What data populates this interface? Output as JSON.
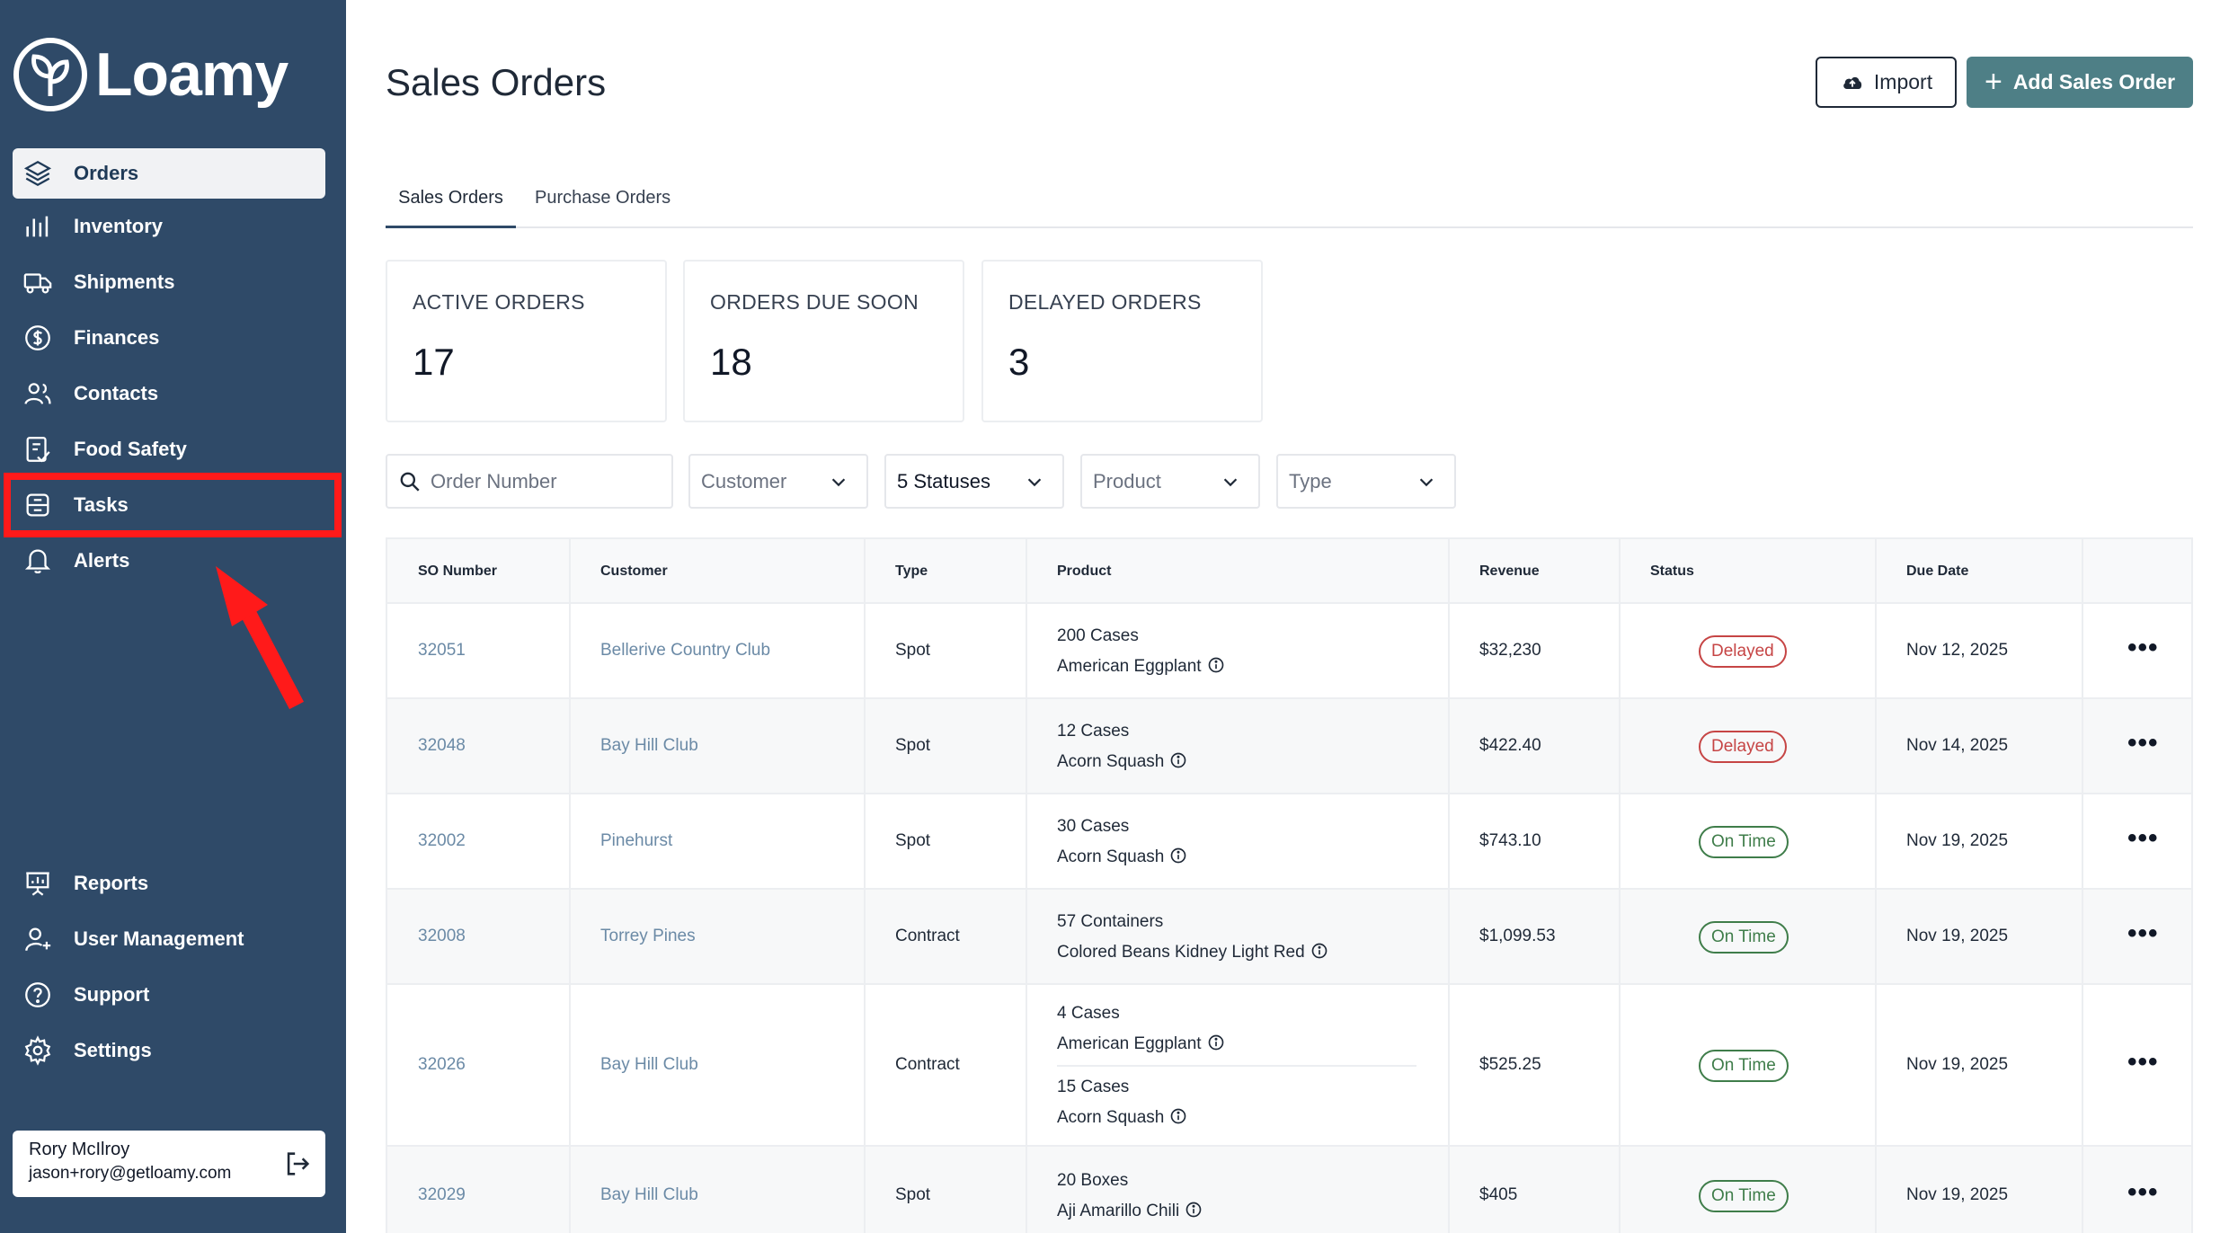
{
  "app": {
    "brand": "Loamy"
  },
  "sidebar": {
    "items": [
      {
        "label": "Orders",
        "icon": "layers-icon",
        "active": true
      },
      {
        "label": "Inventory",
        "icon": "bar-chart-icon"
      },
      {
        "label": "Shipments",
        "icon": "truck-icon"
      },
      {
        "label": "Finances",
        "icon": "dollar-icon"
      },
      {
        "label": "Contacts",
        "icon": "users-icon"
      },
      {
        "label": "Food Safety",
        "icon": "clipboard-check-icon"
      },
      {
        "label": "Tasks",
        "icon": "tasks-icon",
        "highlighted": true
      },
      {
        "label": "Alerts",
        "icon": "bell-icon"
      }
    ],
    "bottom_items": [
      {
        "label": "Reports",
        "icon": "presentation-icon"
      },
      {
        "label": "User Management",
        "icon": "user-add-icon"
      },
      {
        "label": "Support",
        "icon": "help-icon"
      },
      {
        "label": "Settings",
        "icon": "gear-icon"
      }
    ],
    "user": {
      "name": "Rory McIlroy",
      "email": "jason+rory@getloamy.com"
    }
  },
  "header": {
    "title": "Sales Orders",
    "import_label": "Import",
    "add_label": "Add Sales Order"
  },
  "tabs": [
    {
      "label": "Sales Orders",
      "active": true
    },
    {
      "label": "Purchase Orders"
    }
  ],
  "stats": [
    {
      "label": "ACTIVE ORDERS",
      "value": "17"
    },
    {
      "label": "ORDERS DUE SOON",
      "value": "18"
    },
    {
      "label": "DELAYED ORDERS",
      "value": "3"
    }
  ],
  "filters": {
    "search_placeholder": "Order Number",
    "customer": "Customer",
    "statuses": "5 Statuses",
    "product": "Product",
    "type": "Type"
  },
  "table": {
    "columns": [
      "SO Number",
      "Customer",
      "Type",
      "Product",
      "Revenue",
      "Status",
      "Due Date"
    ],
    "rows": [
      {
        "so": "32051",
        "customer": "Bellerive Country Club",
        "type": "Spot",
        "products": [
          {
            "qty": "200 Cases",
            "name": "American Eggplant"
          }
        ],
        "revenue": "$32,230",
        "status": "Delayed",
        "due": "Nov 12, 2025"
      },
      {
        "so": "32048",
        "customer": "Bay Hill Club",
        "type": "Spot",
        "products": [
          {
            "qty": "12 Cases",
            "name": "Acorn Squash"
          }
        ],
        "revenue": "$422.40",
        "status": "Delayed",
        "due": "Nov 14, 2025"
      },
      {
        "so": "32002",
        "customer": "Pinehurst",
        "type": "Spot",
        "products": [
          {
            "qty": "30 Cases",
            "name": "Acorn Squash"
          }
        ],
        "revenue": "$743.10",
        "status": "On Time",
        "due": "Nov 19, 2025"
      },
      {
        "so": "32008",
        "customer": "Torrey Pines",
        "type": "Contract",
        "products": [
          {
            "qty": "57 Containers",
            "name": "Colored Beans Kidney Light Red"
          }
        ],
        "revenue": "$1,099.53",
        "status": "On Time",
        "due": "Nov 19, 2025"
      },
      {
        "so": "32026",
        "customer": "Bay Hill Club",
        "type": "Contract",
        "products": [
          {
            "qty": "4 Cases",
            "name": "American Eggplant"
          },
          {
            "qty": "15 Cases",
            "name": "Acorn Squash"
          }
        ],
        "revenue": "$525.25",
        "status": "On Time",
        "due": "Nov 19, 2025"
      },
      {
        "so": "32029",
        "customer": "Bay Hill Club",
        "type": "Spot",
        "products": [
          {
            "qty": "20 Boxes",
            "name": "Aji Amarillo Chili"
          }
        ],
        "revenue": "$405",
        "status": "On Time",
        "due": "Nov 19, 2025"
      }
    ]
  },
  "colors": {
    "sidebar_bg": "#2f4a68",
    "accent": "#4e7f86",
    "delayed": "#c64545",
    "on_time": "#3f7d4a",
    "highlight": "#ff1a1a"
  }
}
